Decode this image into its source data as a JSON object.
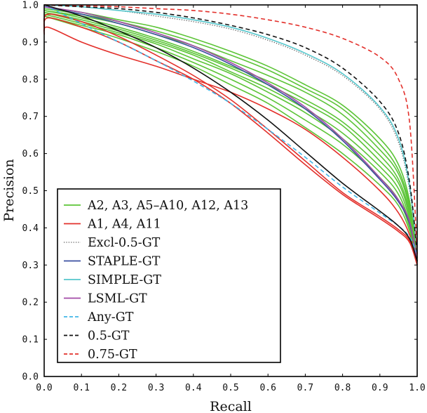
{
  "chart_data": {
    "type": "line",
    "title": "",
    "xlabel": "Recall",
    "ylabel": "Precision",
    "xlim": [
      0,
      1
    ],
    "ylim": [
      0,
      1
    ],
    "xticks": [
      "0.0",
      "0.1",
      "0.2",
      "0.3",
      "0.4",
      "0.5",
      "0.6",
      "0.7",
      "0.8",
      "0.9",
      "1.0"
    ],
    "yticks": [
      "0.0",
      "0.1",
      "0.2",
      "0.3",
      "0.4",
      "0.5",
      "0.6",
      "0.7",
      "0.8",
      "0.9",
      "1.0"
    ],
    "grid": false,
    "legend_position": "bottom-left",
    "legend": [
      {
        "label": "A2, A3, A5–A10, A12, A13",
        "color": "#5cc437",
        "style": "solid"
      },
      {
        "label": "A1, A4, A11",
        "color": "#e3302b",
        "style": "solid"
      },
      {
        "label": "Excl-0.5-GT",
        "color": "#555555",
        "style": "dotted"
      },
      {
        "label": "STAPLE-GT",
        "color": "#3a4fa0",
        "style": "solid"
      },
      {
        "label": "SIMPLE-GT",
        "color": "#55c6cc",
        "style": "solid"
      },
      {
        "label": "LSML-GT",
        "color": "#a24aa7",
        "style": "solid"
      },
      {
        "label": "Any-GT",
        "color": "#40b6e8",
        "style": "dashed"
      },
      {
        "label": "0.5-GT",
        "color": "#111111",
        "style": "dashed"
      },
      {
        "label": "0.75-GT",
        "color": "#e3302b",
        "style": "dashed"
      }
    ],
    "series": [
      {
        "color": "#5cc437",
        "style": "solid",
        "x": [
          0,
          0.1,
          0.2,
          0.3,
          0.4,
          0.5,
          0.6,
          0.7,
          0.8,
          0.9,
          0.95,
          0.98,
          1.0
        ],
        "y": [
          0.995,
          0.98,
          0.96,
          0.94,
          0.91,
          0.875,
          0.835,
          0.785,
          0.73,
          0.64,
          0.57,
          0.47,
          0.32
        ]
      },
      {
        "color": "#5cc437",
        "style": "solid",
        "x": [
          0,
          0.1,
          0.2,
          0.3,
          0.4,
          0.5,
          0.6,
          0.7,
          0.8,
          0.9,
          0.95,
          0.98,
          1.0
        ],
        "y": [
          0.99,
          0.975,
          0.955,
          0.93,
          0.9,
          0.865,
          0.825,
          0.775,
          0.72,
          0.625,
          0.555,
          0.46,
          0.32
        ]
      },
      {
        "color": "#5cc437",
        "style": "solid",
        "x": [
          0,
          0.1,
          0.2,
          0.3,
          0.4,
          0.5,
          0.6,
          0.7,
          0.8,
          0.9,
          0.95,
          0.98,
          1.0
        ],
        "y": [
          0.985,
          0.97,
          0.95,
          0.92,
          0.89,
          0.85,
          0.81,
          0.765,
          0.705,
          0.61,
          0.545,
          0.45,
          0.32
        ]
      },
      {
        "color": "#5cc437",
        "style": "solid",
        "x": [
          0,
          0.1,
          0.2,
          0.3,
          0.4,
          0.5,
          0.6,
          0.7,
          0.8,
          0.9,
          0.95,
          0.98,
          1.0
        ],
        "y": [
          0.985,
          0.965,
          0.94,
          0.91,
          0.875,
          0.835,
          0.795,
          0.745,
          0.685,
          0.595,
          0.53,
          0.44,
          0.31
        ]
      },
      {
        "color": "#5cc437",
        "style": "solid",
        "x": [
          0,
          0.1,
          0.2,
          0.3,
          0.4,
          0.5,
          0.6,
          0.7,
          0.8,
          0.9,
          0.95,
          0.98,
          1.0
        ],
        "y": [
          0.98,
          0.96,
          0.935,
          0.905,
          0.87,
          0.83,
          0.785,
          0.735,
          0.675,
          0.58,
          0.52,
          0.43,
          0.31
        ]
      },
      {
        "color": "#5cc437",
        "style": "solid",
        "x": [
          0,
          0.1,
          0.2,
          0.3,
          0.4,
          0.5,
          0.6,
          0.7,
          0.8,
          0.9,
          0.95,
          0.98,
          1.0
        ],
        "y": [
          0.98,
          0.955,
          0.93,
          0.9,
          0.865,
          0.82,
          0.775,
          0.72,
          0.655,
          0.565,
          0.505,
          0.42,
          0.31
        ]
      },
      {
        "color": "#5cc437",
        "style": "solid",
        "x": [
          0,
          0.1,
          0.2,
          0.3,
          0.4,
          0.5,
          0.6,
          0.7,
          0.8,
          0.9,
          0.95,
          0.98,
          1.0
        ],
        "y": [
          0.975,
          0.95,
          0.925,
          0.895,
          0.855,
          0.815,
          0.765,
          0.71,
          0.64,
          0.55,
          0.49,
          0.41,
          0.31
        ]
      },
      {
        "color": "#5cc437",
        "style": "solid",
        "x": [
          0,
          0.1,
          0.2,
          0.3,
          0.4,
          0.5,
          0.6,
          0.7,
          0.8,
          0.9,
          0.95,
          0.98,
          1.0
        ],
        "y": [
          0.97,
          0.945,
          0.92,
          0.885,
          0.845,
          0.8,
          0.75,
          0.69,
          0.625,
          0.535,
          0.475,
          0.4,
          0.31
        ]
      },
      {
        "color": "#5cc437",
        "style": "solid",
        "x": [
          0,
          0.1,
          0.2,
          0.3,
          0.4,
          0.5,
          0.6,
          0.7,
          0.8,
          0.9,
          0.95,
          0.98,
          1.0
        ],
        "y": [
          0.97,
          0.94,
          0.91,
          0.875,
          0.835,
          0.785,
          0.735,
          0.67,
          0.6,
          0.515,
          0.46,
          0.39,
          0.3
        ]
      },
      {
        "color": "#e3302b",
        "style": "solid",
        "x": [
          0,
          0.01,
          0.1,
          0.2,
          0.3,
          0.4,
          0.5,
          0.6,
          0.7,
          0.8,
          0.9,
          0.95,
          0.98,
          1.0
        ],
        "y": [
          0.92,
          0.94,
          0.9,
          0.865,
          0.835,
          0.8,
          0.765,
          0.72,
          0.665,
          0.59,
          0.5,
          0.44,
          0.38,
          0.3
        ]
      },
      {
        "color": "#e3302b",
        "style": "solid",
        "x": [
          0,
          0.01,
          0.1,
          0.2,
          0.3,
          0.4,
          0.5,
          0.6,
          0.7,
          0.8,
          0.9,
          0.95,
          0.98,
          1.0
        ],
        "y": [
          0.93,
          0.965,
          0.94,
          0.9,
          0.85,
          0.8,
          0.735,
          0.655,
          0.57,
          0.49,
          0.425,
          0.39,
          0.36,
          0.3
        ]
      },
      {
        "color": "#e3302b",
        "style": "solid",
        "x": [
          0,
          0.01,
          0.1,
          0.2,
          0.3,
          0.4,
          0.5,
          0.6,
          0.7,
          0.8,
          0.9,
          0.95,
          0.98,
          1.0
        ],
        "y": [
          0.94,
          0.975,
          0.955,
          0.915,
          0.865,
          0.81,
          0.745,
          0.665,
          0.58,
          0.495,
          0.43,
          0.395,
          0.365,
          0.3
        ]
      },
      {
        "color": "#555555",
        "style": "dotted",
        "x": [
          0,
          0.1,
          0.2,
          0.3,
          0.4,
          0.5,
          0.6,
          0.7,
          0.8,
          0.9,
          0.95,
          0.98,
          1.0
        ],
        "y": [
          1.0,
          0.995,
          0.985,
          0.97,
          0.955,
          0.935,
          0.905,
          0.865,
          0.81,
          0.72,
          0.63,
          0.5,
          0.33
        ]
      },
      {
        "color": "#3a4fa0",
        "style": "solid",
        "x": [
          0,
          0.1,
          0.2,
          0.3,
          0.4,
          0.5,
          0.6,
          0.7,
          0.8,
          0.9,
          0.95,
          0.98,
          1.0
        ],
        "y": [
          0.995,
          0.975,
          0.95,
          0.92,
          0.885,
          0.84,
          0.785,
          0.72,
          0.635,
          0.53,
          0.47,
          0.41,
          0.31
        ]
      },
      {
        "color": "#55c6cc",
        "style": "solid",
        "x": [
          0,
          0.1,
          0.2,
          0.3,
          0.4,
          0.5,
          0.6,
          0.7,
          0.8,
          0.9,
          0.95,
          0.98,
          1.0
        ],
        "y": [
          1.0,
          0.995,
          0.985,
          0.975,
          0.96,
          0.94,
          0.91,
          0.87,
          0.815,
          0.725,
          0.64,
          0.51,
          0.33
        ]
      },
      {
        "color": "#a24aa7",
        "style": "solid",
        "x": [
          0,
          0.1,
          0.2,
          0.3,
          0.4,
          0.5,
          0.6,
          0.7,
          0.8,
          0.9,
          0.95,
          0.98,
          1.0
        ],
        "y": [
          0.995,
          0.98,
          0.955,
          0.925,
          0.89,
          0.845,
          0.79,
          0.725,
          0.64,
          0.535,
          0.475,
          0.415,
          0.31
        ]
      },
      {
        "color": "#40b6e8",
        "style": "dashed",
        "x": [
          0,
          0.1,
          0.2,
          0.3,
          0.4,
          0.5,
          0.6,
          0.7,
          0.8,
          0.9,
          0.95,
          0.98,
          1.0
        ],
        "y": [
          1.0,
          0.95,
          0.9,
          0.85,
          0.795,
          0.735,
          0.665,
          0.59,
          0.51,
          0.44,
          0.405,
          0.375,
          0.33
        ]
      },
      {
        "color": "#111111",
        "style": "dashed",
        "x": [
          0,
          0.1,
          0.2,
          0.3,
          0.4,
          0.5,
          0.6,
          0.7,
          0.8,
          0.9,
          0.95,
          0.98,
          1.0
        ],
        "y": [
          1.0,
          0.995,
          0.99,
          0.98,
          0.965,
          0.945,
          0.92,
          0.885,
          0.83,
          0.74,
          0.655,
          0.52,
          0.33
        ]
      },
      {
        "color": "#111111",
        "style": "solid",
        "x": [
          0,
          0.1,
          0.2,
          0.3,
          0.4,
          0.5,
          0.6,
          0.7,
          0.8,
          0.9,
          0.95,
          0.98,
          1.0
        ],
        "y": [
          1.0,
          0.97,
          0.93,
          0.885,
          0.83,
          0.765,
          0.69,
          0.605,
          0.52,
          0.445,
          0.405,
          0.37,
          0.31
        ]
      },
      {
        "color": "#e3302b",
        "style": "dashed",
        "x": [
          0,
          0.1,
          0.2,
          0.3,
          0.4,
          0.5,
          0.6,
          0.7,
          0.8,
          0.9,
          0.95,
          0.98,
          1.0
        ],
        "y": [
          1.0,
          0.998,
          0.995,
          0.99,
          0.985,
          0.975,
          0.96,
          0.94,
          0.91,
          0.86,
          0.8,
          0.68,
          0.33
        ]
      }
    ]
  }
}
